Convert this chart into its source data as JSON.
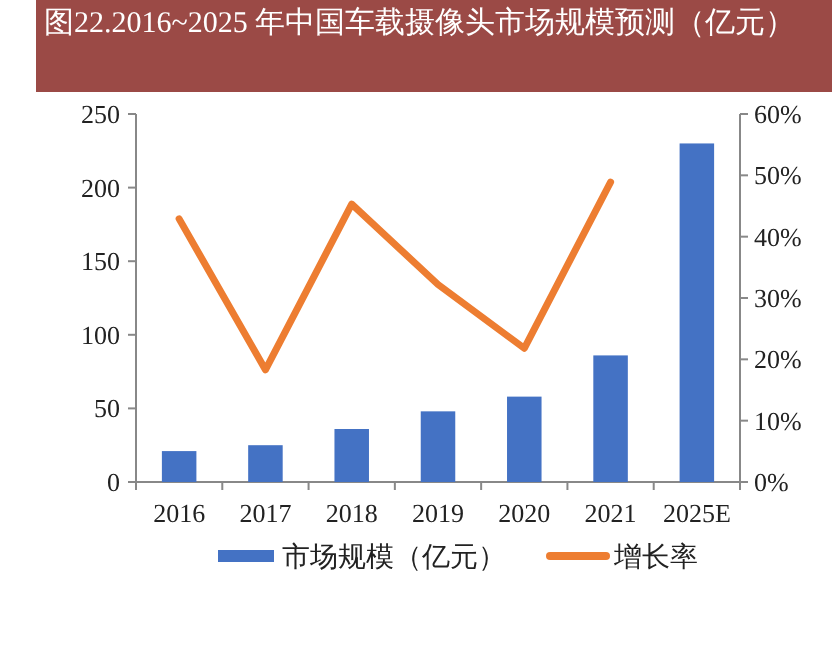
{
  "chart_data": {
    "type": "bar",
    "title": "图22.2016~2025 年中国车载摄像头市场规模预测（亿元）",
    "categories": [
      "2016",
      "2017",
      "2018",
      "2019",
      "2020",
      "2021",
      "2025E"
    ],
    "series": [
      {
        "name": "市场规模（亿元）",
        "color": "#4472c4",
        "values": [
          21,
          25,
          36,
          48,
          58,
          86,
          230
        ]
      },
      {
        "name": "增长率",
        "type": "line",
        "axis": "y2",
        "color": "#ed7d31",
        "values": [
          42.9,
          18.3,
          45.3,
          32.2,
          21.8,
          48.9,
          null
        ]
      }
    ],
    "ylim": [
      0,
      250
    ],
    "yticks": [
      0,
      50,
      100,
      150,
      200,
      250
    ],
    "y2lim": [
      0,
      60
    ],
    "y2ticks": [
      {
        "value": 0,
        "label": "0%"
      },
      {
        "value": 10,
        "label": "10%"
      },
      {
        "value": 20,
        "label": "20%"
      },
      {
        "value": 30,
        "label": "30%"
      },
      {
        "value": 40,
        "label": "40%"
      },
      {
        "value": 50,
        "label": "50%"
      },
      {
        "value": 60,
        "label": "60%"
      }
    ],
    "grid": false,
    "legend": "bottom"
  }
}
